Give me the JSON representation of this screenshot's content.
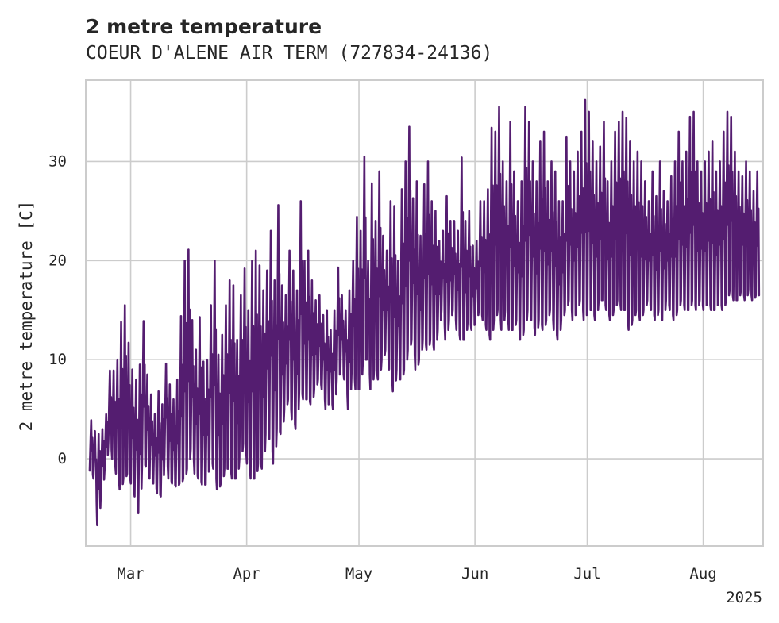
{
  "chart_data": {
    "type": "line",
    "title": "2 metre temperature",
    "subtitle": "COEUR D'ALENE AIR TERM (727834-24136)",
    "xlabel": "",
    "ylabel": "2 metre temperature [C]",
    "x_ticks": [
      {
        "date": "2025-03-01",
        "label": "Mar"
      },
      {
        "date": "2025-04-01",
        "label": "Apr"
      },
      {
        "date": "2025-05-01",
        "label": "May"
      },
      {
        "date": "2025-06-01",
        "label": "Jun"
      },
      {
        "date": "2025-07-01",
        "label": "Jul"
      },
      {
        "date": "2025-08-01",
        "label": "Aug"
      }
    ],
    "x_year_label": "2025",
    "y_ticks": [
      0,
      10,
      20,
      30
    ],
    "xlim": [
      "2025-02-17",
      "2025-08-17"
    ],
    "ylim": [
      -8.8,
      38.2
    ],
    "grid": true,
    "color": "#541d70",
    "series": [
      {
        "x": [
          "2025-02-18",
          "2025-02-19",
          "2025-02-20",
          "2025-02-21",
          "2025-02-22",
          "2025-02-23",
          "2025-02-24",
          "2025-02-25",
          "2025-02-26",
          "2025-02-27",
          "2025-02-28",
          "2025-03-01",
          "2025-03-02",
          "2025-03-03",
          "2025-03-04",
          "2025-03-05",
          "2025-03-06",
          "2025-03-07",
          "2025-03-08",
          "2025-03-09",
          "2025-03-10",
          "2025-03-11",
          "2025-03-12",
          "2025-03-13",
          "2025-03-14",
          "2025-03-15",
          "2025-03-16",
          "2025-03-17",
          "2025-03-18",
          "2025-03-19",
          "2025-03-20",
          "2025-03-21",
          "2025-03-22",
          "2025-03-23",
          "2025-03-24",
          "2025-03-25",
          "2025-03-26",
          "2025-03-27",
          "2025-03-28",
          "2025-03-29",
          "2025-03-30",
          "2025-03-31",
          "2025-04-01",
          "2025-04-02",
          "2025-04-03",
          "2025-04-04",
          "2025-04-05",
          "2025-04-06",
          "2025-04-07",
          "2025-04-08",
          "2025-04-09",
          "2025-04-10",
          "2025-04-11",
          "2025-04-12",
          "2025-04-13",
          "2025-04-14",
          "2025-04-15",
          "2025-04-16",
          "2025-04-17",
          "2025-04-18",
          "2025-04-19",
          "2025-04-20",
          "2025-04-21",
          "2025-04-22",
          "2025-04-23",
          "2025-04-24",
          "2025-04-25",
          "2025-04-26",
          "2025-04-27",
          "2025-04-28",
          "2025-04-29",
          "2025-04-30",
          "2025-05-01",
          "2025-05-02",
          "2025-05-03",
          "2025-05-04",
          "2025-05-05",
          "2025-05-06",
          "2025-05-07",
          "2025-05-08",
          "2025-05-09",
          "2025-05-10",
          "2025-05-11",
          "2025-05-12",
          "2025-05-13",
          "2025-05-14",
          "2025-05-15",
          "2025-05-16",
          "2025-05-17",
          "2025-05-18",
          "2025-05-19",
          "2025-05-20",
          "2025-05-21",
          "2025-05-22",
          "2025-05-23",
          "2025-05-24",
          "2025-05-25",
          "2025-05-26",
          "2025-05-27",
          "2025-05-28",
          "2025-05-29",
          "2025-05-30",
          "2025-05-31",
          "2025-06-01",
          "2025-06-02",
          "2025-06-03",
          "2025-06-04",
          "2025-06-05",
          "2025-06-06",
          "2025-06-07",
          "2025-06-08",
          "2025-06-09",
          "2025-06-10",
          "2025-06-11",
          "2025-06-12",
          "2025-06-13",
          "2025-06-14",
          "2025-06-15",
          "2025-06-16",
          "2025-06-17",
          "2025-06-18",
          "2025-06-19",
          "2025-06-20",
          "2025-06-21",
          "2025-06-22",
          "2025-06-23",
          "2025-06-24",
          "2025-06-25",
          "2025-06-26",
          "2025-06-27",
          "2025-06-28",
          "2025-06-29",
          "2025-06-30",
          "2025-07-01",
          "2025-07-02",
          "2025-07-03",
          "2025-07-04",
          "2025-07-05",
          "2025-07-06",
          "2025-07-07",
          "2025-07-08",
          "2025-07-09",
          "2025-07-10",
          "2025-07-11",
          "2025-07-12",
          "2025-07-13",
          "2025-07-14",
          "2025-07-15",
          "2025-07-16",
          "2025-07-17",
          "2025-07-18",
          "2025-07-19",
          "2025-07-20",
          "2025-07-21",
          "2025-07-22",
          "2025-07-23",
          "2025-07-24",
          "2025-07-25",
          "2025-07-26",
          "2025-07-27",
          "2025-07-28",
          "2025-07-29",
          "2025-07-30",
          "2025-07-31",
          "2025-08-01",
          "2025-08-02",
          "2025-08-03",
          "2025-08-04",
          "2025-08-05",
          "2025-08-06",
          "2025-08-07",
          "2025-08-08",
          "2025-08-09",
          "2025-08-10",
          "2025-08-11",
          "2025-08-12",
          "2025-08-13",
          "2025-08-14",
          "2025-08-15"
        ],
        "y_max": [
          3.9,
          2.8,
          2.5,
          3.0,
          4.5,
          8.9,
          8.9,
          10.0,
          13.8,
          15.5,
          11.7,
          9.0,
          8.0,
          9.5,
          13.9,
          8.5,
          6.5,
          4.5,
          6.8,
          5.5,
          9.6,
          7.5,
          6.0,
          8.0,
          14.4,
          20.0,
          21.1,
          14.0,
          11.0,
          14.3,
          9.8,
          10.0,
          15.5,
          20.0,
          10.5,
          12.5,
          15.5,
          18.0,
          17.5,
          12.0,
          16.5,
          19.2,
          15.0,
          20.0,
          21.0,
          19.5,
          17.0,
          19.0,
          23.0,
          18.0,
          25.6,
          17.5,
          16.5,
          21.0,
          19.0,
          17.0,
          26.0,
          20.0,
          21.0,
          18.0,
          16.0,
          16.5,
          14.5,
          15.0,
          13.0,
          15.0,
          19.3,
          16.5,
          15.0,
          17.0,
          20.0,
          24.4,
          23.0,
          30.5,
          20.0,
          27.8,
          24.0,
          29.0,
          22.5,
          21.0,
          26.0,
          25.5,
          20.0,
          27.2,
          30.0,
          33.5,
          26.3,
          28.0,
          22.5,
          27.7,
          30.0,
          26.0,
          25.0,
          22.0,
          23.0,
          26.5,
          24.0,
          24.0,
          23.0,
          30.4,
          24.0,
          25.0,
          21.5,
          22.0,
          26.0,
          26.0,
          27.2,
          33.4,
          33.0,
          35.5,
          30.0,
          28.0,
          34.0,
          29.0,
          26.0,
          28.0,
          35.5,
          34.0,
          30.0,
          28.0,
          32.0,
          33.0,
          28.0,
          30.0,
          29.0,
          26.0,
          26.0,
          32.5,
          30.0,
          29.0,
          31.0,
          33.0,
          36.2,
          35.0,
          32.0,
          30.0,
          31.5,
          34.0,
          28.0,
          30.0,
          33.0,
          34.0,
          35.0,
          34.4,
          32.0,
          30.0,
          31.0,
          30.0,
          28.0,
          26.0,
          29.0,
          26.5,
          30.0,
          27.0,
          26.0,
          28.5,
          30.0,
          33.0,
          30.0,
          31.0,
          34.5,
          35.0,
          30.0,
          29.0,
          30.0,
          31.0,
          32.0,
          29.0,
          30.0,
          33.0,
          35.0,
          34.5,
          31.0,
          29.0,
          28.5,
          30.0,
          29.0,
          27.0,
          29.0
        ],
        "y_min": [
          -1.2,
          -2.0,
          -6.7,
          -3.2,
          -1.0,
          1.8,
          0.0,
          -1.5,
          -3.1,
          -2.0,
          -1.5,
          -2.5,
          -3.8,
          -5.5,
          -0.5,
          -0.8,
          -2.0,
          -2.5,
          -3.5,
          -3.8,
          0.5,
          -2.0,
          -2.5,
          -2.8,
          -2.5,
          -2.0,
          -1.0,
          1.0,
          -1.5,
          -2.0,
          -2.6,
          -2.6,
          0.0,
          -1.0,
          -3.1,
          -2.5,
          -1.0,
          -1.0,
          -2.0,
          -2.0,
          0.0,
          1.5,
          -0.5,
          -2.0,
          -2.0,
          -0.5,
          -1.0,
          2.5,
          2.0,
          -0.5,
          3.0,
          2.5,
          5.0,
          6.0,
          4.0,
          3.0,
          7.0,
          6.0,
          6.0,
          5.5,
          7.0,
          8.0,
          7.0,
          5.0,
          6.0,
          5.0,
          8.0,
          9.0,
          8.0,
          5.0,
          9.0,
          7.0,
          7.0,
          10.0,
          10.0,
          7.0,
          9.0,
          8.0,
          10.0,
          11.0,
          9.0,
          6.8,
          9.0,
          8.0,
          9.0,
          11.0,
          12.0,
          9.0,
          10.0,
          12.0,
          11.0,
          12.0,
          11.0,
          13.0,
          15.0,
          12.0,
          14.0,
          15.0,
          13.0,
          12.0,
          12.0,
          14.0,
          13.0,
          14.0,
          15.0,
          14.0,
          13.0,
          12.0,
          14.0,
          15.0,
          13.0,
          15.0,
          13.0,
          13.0,
          14.0,
          12.0,
          13.0,
          15.0,
          14.0,
          12.5,
          14.0,
          13.0,
          14.0,
          15.0,
          13.0,
          12.0,
          14.0,
          15.0,
          16.0,
          14.0,
          15.0,
          16.0,
          14.0,
          15.0,
          15.0,
          14.0,
          16.0,
          16.0,
          15.0,
          14.0,
          15.0,
          16.0,
          15.0,
          15.0,
          13.0,
          14.0,
          15.0,
          14.0,
          15.0,
          16.0,
          15.0,
          14.0,
          15.0,
          14.0,
          16.0,
          15.0,
          14.0,
          15.0,
          16.0,
          15.0,
          15.0,
          16.0,
          15.0,
          16.0,
          15.0,
          16.0,
          15.0,
          15.0,
          16.0,
          15.0,
          16.0,
          17.0,
          16.0,
          16.0,
          17.0,
          16.0,
          17.0,
          16.0,
          16.5
        ]
      }
    ]
  }
}
